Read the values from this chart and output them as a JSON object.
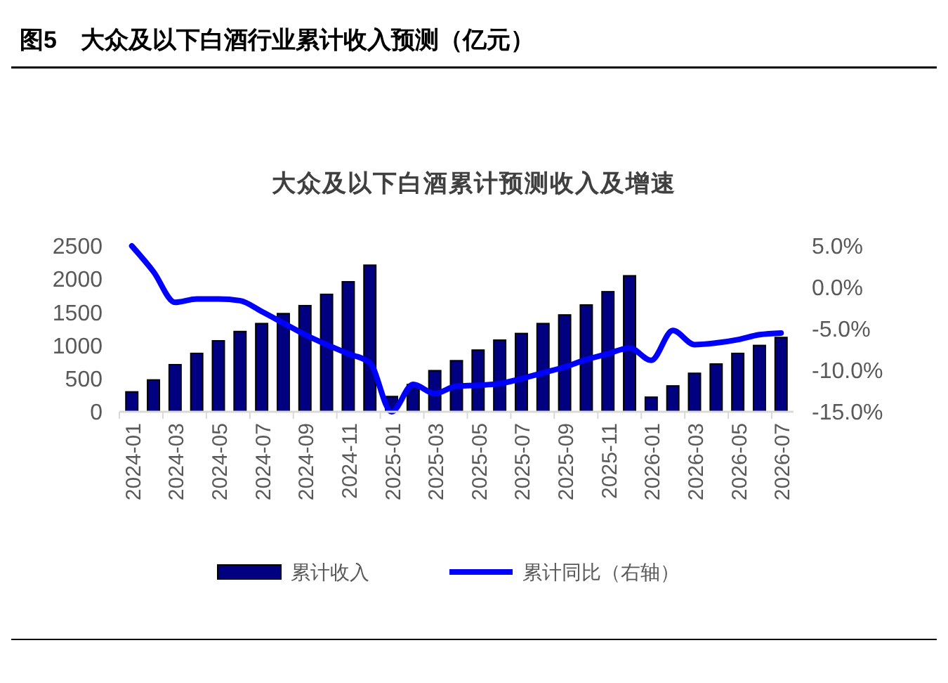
{
  "chart_data": {
    "type": "bar",
    "title": "图5　大众及以下白酒行业累计收入预测（亿元）",
    "subtitle": "大众及以下白酒累计预测收入及增速",
    "categories": [
      "2024-01",
      null,
      "2024-03",
      null,
      "2024-05",
      null,
      "2024-07",
      null,
      "2024-09",
      null,
      "2024-11",
      null,
      "2025-01",
      null,
      "2025-03",
      null,
      "2025-05",
      null,
      "2025-07",
      null,
      "2025-09",
      null,
      "2025-11",
      null,
      "2026-01",
      null,
      "2026-03",
      null,
      "2026-05",
      null,
      "2026-07"
    ],
    "series": [
      {
        "name": "累计收入",
        "color": "#000080",
        "values": [
          300,
          480,
          710,
          880,
          1070,
          1210,
          1330,
          1480,
          1600,
          1770,
          1960,
          2210,
          230,
          410,
          620,
          770,
          930,
          1080,
          1180,
          1330,
          1460,
          1610,
          1810,
          2050,
          220,
          390,
          580,
          720,
          880,
          1000,
          1120
        ]
      },
      {
        "name": "累计同比（右轴）",
        "type": "line",
        "axis": "y2",
        "color": "#0000ff",
        "values": [
          5.0,
          1.9,
          -1.8,
          -1.4,
          -1.4,
          -1.6,
          -2.9,
          -4.3,
          -5.7,
          -6.9,
          -8.0,
          -9.1,
          -15.0,
          -11.7,
          -12.8,
          -11.9,
          -11.8,
          -11.6,
          -11.0,
          -10.3,
          -9.6,
          -8.7,
          -8.0,
          -7.3,
          -8.8,
          -5.2,
          -6.9,
          -6.7,
          -6.3,
          -5.7,
          -5.5
        ]
      }
    ],
    "ylim": [
      0,
      2500
    ],
    "yticks": [
      0,
      500,
      1000,
      1500,
      2000,
      2500
    ],
    "y2lim": [
      -15,
      5
    ],
    "y2ticks": [
      {
        "value": 5,
        "label": "5.0%"
      },
      {
        "value": 0,
        "label": "0.0%"
      },
      {
        "value": -5,
        "label": "-5.0%"
      },
      {
        "value": -10,
        "label": "-10.0%"
      },
      {
        "value": -15,
        "label": "-15.0%"
      }
    ],
    "legend": "bottom",
    "grid": false
  }
}
